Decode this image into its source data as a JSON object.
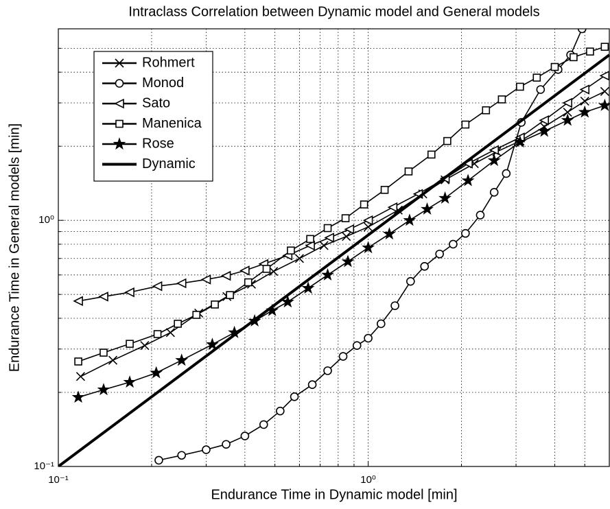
{
  "chart_data": {
    "type": "line",
    "title": "Intraclass Correlation between Dynamic model and General models",
    "x_label": "Endurance Time in Dynamic model [min]",
    "y_label": "Endurance Time in General models [min]",
    "log_x": true,
    "log_y": true,
    "grid": true,
    "legend": "upper left",
    "xlim": [
      0.1,
      6
    ],
    "ylim": [
      0.1,
      6
    ],
    "xticks": [
      {
        "value": 0.1,
        "label": "10⁻¹"
      },
      {
        "value": 1,
        "label": "10⁰"
      }
    ],
    "yticks": [
      {
        "value": 0.1,
        "label": "10⁻¹"
      },
      {
        "value": 1,
        "label": "10⁰"
      }
    ],
    "xminorticks": [
      0.2,
      0.3,
      0.4,
      0.5,
      0.6,
      0.7,
      0.8,
      0.9,
      2,
      3,
      4,
      5
    ],
    "yminorticks": [
      0.2,
      0.3,
      0.4,
      0.5,
      0.6,
      0.7,
      0.8,
      0.9,
      2,
      3,
      4,
      5
    ],
    "series": [
      {
        "name": "Rohmert",
        "marker": "x",
        "color": "#000",
        "x": [
          0.118,
          0.15,
          0.19,
          0.23,
          0.284,
          0.35,
          0.42,
          0.495,
          0.6,
          0.72,
          0.85,
          1,
          1.25,
          1.5,
          1.77,
          2.2,
          2.6,
          3.09,
          3.7,
          4.4,
          5,
          5.8
        ],
        "values": [
          0.232,
          0.27,
          0.31,
          0.35,
          0.42,
          0.49,
          0.55,
          0.62,
          0.7,
          0.79,
          0.86,
          0.94,
          1.1,
          1.28,
          1.46,
          1.7,
          1.9,
          2.1,
          2.4,
          2.75,
          3.05,
          3.34
        ]
      },
      {
        "name": "Monod",
        "marker": "o",
        "color": "#000",
        "x": [
          0.211,
          0.25,
          0.3,
          0.348,
          0.4,
          0.46,
          0.52,
          0.578,
          0.66,
          0.74,
          0.83,
          0.92,
          1,
          1.1,
          1.22,
          1.37,
          1.52,
          1.7,
          1.88,
          2.06,
          2.3,
          2.55,
          2.79,
          3.12,
          3.6,
          4.1,
          4.5,
          4.9
        ],
        "values": [
          0.106,
          0.111,
          0.117,
          0.123,
          0.133,
          0.148,
          0.168,
          0.192,
          0.215,
          0.245,
          0.28,
          0.31,
          0.332,
          0.38,
          0.45,
          0.565,
          0.65,
          0.73,
          0.8,
          0.885,
          1.05,
          1.3,
          1.55,
          2.5,
          3.4,
          4.1,
          4.7,
          6
        ]
      },
      {
        "name": "Sato",
        "marker": "tri",
        "color": "#000",
        "x": [
          0.116,
          0.14,
          0.17,
          0.209,
          0.25,
          0.3,
          0.348,
          0.4,
          0.46,
          0.55,
          0.65,
          0.75,
          0.87,
          1,
          1.2,
          1.45,
          1.77,
          2.1,
          2.55,
          3.09,
          3.7,
          4.4,
          5,
          5.8
        ],
        "values": [
          0.47,
          0.49,
          0.51,
          0.54,
          0.555,
          0.575,
          0.595,
          0.625,
          0.665,
          0.72,
          0.79,
          0.85,
          0.92,
          1,
          1.13,
          1.28,
          1.48,
          1.7,
          1.93,
          2.17,
          2.55,
          3.0,
          3.4,
          3.87
        ]
      },
      {
        "name": "Manenica",
        "marker": "sq",
        "color": "#000",
        "x": [
          0.116,
          0.14,
          0.17,
          0.209,
          0.243,
          0.279,
          0.32,
          0.358,
          0.41,
          0.47,
          0.563,
          0.65,
          0.74,
          0.845,
          0.97,
          1.13,
          1.35,
          1.6,
          1.8,
          2.06,
          2.4,
          2.7,
          3.09,
          3.5,
          4,
          4.6,
          5.2,
          5.8
        ],
        "values": [
          0.267,
          0.29,
          0.315,
          0.345,
          0.38,
          0.413,
          0.455,
          0.497,
          0.56,
          0.635,
          0.754,
          0.84,
          0.93,
          1.02,
          1.16,
          1.33,
          1.58,
          1.85,
          2.1,
          2.45,
          2.8,
          3.1,
          3.49,
          3.8,
          4.2,
          4.6,
          4.85,
          5.07
        ]
      },
      {
        "name": "Rose",
        "marker": "star",
        "color": "#000",
        "x": [
          0.116,
          0.14,
          0.17,
          0.207,
          0.25,
          0.314,
          0.37,
          0.43,
          0.49,
          0.55,
          0.64,
          0.74,
          0.86,
          1,
          1.17,
          1.36,
          1.55,
          1.77,
          2.1,
          2.55,
          3.09,
          3.7,
          4.4,
          5,
          5.8
        ],
        "values": [
          0.191,
          0.205,
          0.22,
          0.24,
          0.27,
          0.313,
          0.35,
          0.39,
          0.43,
          0.466,
          0.53,
          0.6,
          0.68,
          0.774,
          0.88,
          1.0,
          1.11,
          1.23,
          1.45,
          1.75,
          2.08,
          2.3,
          2.55,
          2.75,
          2.93
        ]
      },
      {
        "name": "Dynamic",
        "marker": "none",
        "color": "#000",
        "width": 4,
        "x": [
          0.1,
          6
        ],
        "values": [
          0.1,
          4.7
        ]
      }
    ]
  }
}
